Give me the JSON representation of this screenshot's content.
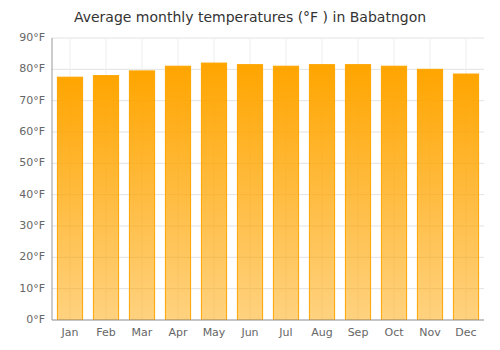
{
  "chart_data": {
    "type": "bar",
    "title": "Average monthly temperatures (°F ) in Babatngon",
    "categories": [
      "Jan",
      "Feb",
      "Mar",
      "Apr",
      "May",
      "Jun",
      "Jul",
      "Aug",
      "Sep",
      "Oct",
      "Nov",
      "Dec"
    ],
    "values": [
      77.5,
      78.0,
      79.5,
      81.0,
      82.0,
      81.5,
      81.0,
      81.5,
      81.5,
      81.0,
      80.0,
      78.5
    ],
    "color": "#FFA500",
    "ylim": [
      0,
      90
    ],
    "yticks": [
      {
        "value": 0,
        "label": "0°F"
      },
      {
        "value": 10,
        "label": "10°F"
      },
      {
        "value": 20,
        "label": "20°F"
      },
      {
        "value": 30,
        "label": "30°F"
      },
      {
        "value": 40,
        "label": "40°F"
      },
      {
        "value": 50,
        "label": "50°F"
      },
      {
        "value": 60,
        "label": "60°F"
      },
      {
        "value": 70,
        "label": "70°F"
      },
      {
        "value": 80,
        "label": "80°F"
      },
      {
        "value": 90,
        "label": "90°F"
      }
    ],
    "grid": true
  }
}
